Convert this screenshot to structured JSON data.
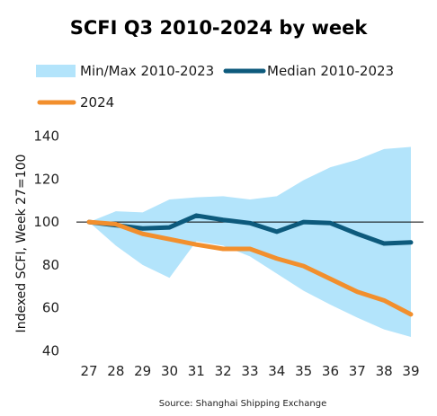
{
  "chart_data": {
    "type": "line",
    "title": "SCFI Q3 2010-2024 by week",
    "ylabel": "Indexed SCFI, Week 27=100",
    "xlabel": "",
    "source": "Source: Shanghai Shipping Exchange",
    "x": [
      "27",
      "28",
      "29",
      "30",
      "31",
      "32",
      "33",
      "34",
      "35",
      "36",
      "37",
      "38",
      "39"
    ],
    "yticks": [
      "140",
      "120",
      "100",
      "80",
      "60",
      "40"
    ],
    "ylim": [
      40,
      150
    ],
    "reference_line": 100,
    "band": {
      "name": "Min/Max 2010-2023",
      "color": "#b3e4fb",
      "max": [
        100,
        105,
        104.5,
        110.5,
        111.5,
        112,
        110.5,
        112,
        119.5,
        125.5,
        129,
        134,
        135
      ],
      "min": [
        100,
        89,
        80,
        74,
        91,
        89,
        84,
        76,
        68,
        61.5,
        55.5,
        50,
        46.5
      ]
    },
    "series": [
      {
        "name": "Median 2010-2023",
        "color": "#0d5a7c",
        "values": [
          100,
          98.5,
          97,
          97.5,
          103,
          101,
          99.5,
          95.5,
          100,
          99.5,
          94.5,
          90,
          90.5
        ]
      },
      {
        "name": "2024",
        "color": "#f28f2d",
        "values": [
          100,
          99,
          94.5,
          92,
          89.5,
          87.5,
          87.5,
          83,
          79.5,
          73.5,
          67.5,
          63.5,
          57
        ]
      }
    ],
    "legend_position": "top"
  }
}
